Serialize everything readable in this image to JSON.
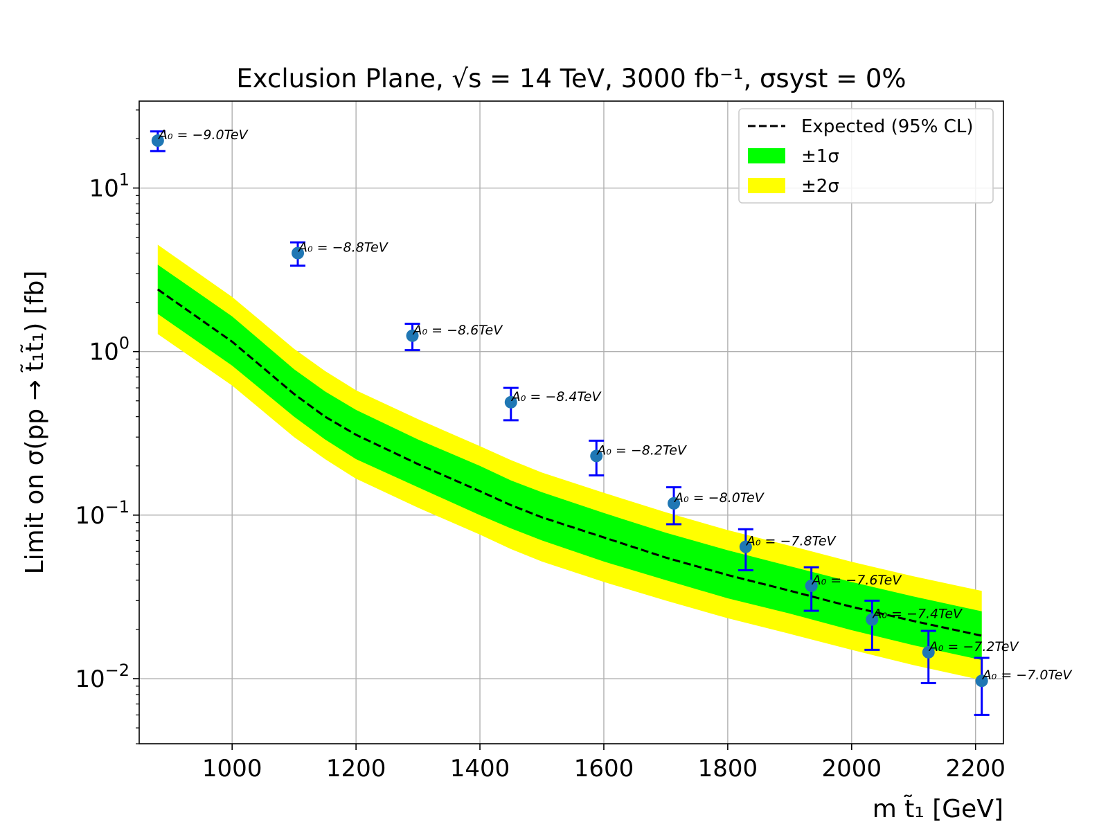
{
  "chart_data": {
    "type": "line",
    "title": "Exclusion Plane, √s = 14 TeV, 3000 fb⁻¹, σsyst = 0%",
    "xlabel": "m t̃₁ [GeV]",
    "ylabel": "Limit on σ(pp → t̃₁t̃₁) [fb]",
    "xscale": "linear",
    "yscale": "log",
    "xlim": [
      850,
      2245
    ],
    "ylim": [
      0.004,
      34
    ],
    "grid": true,
    "legend_position": "top-right",
    "x_ticks": [
      1000,
      1200,
      1400,
      1600,
      1800,
      2000,
      2200
    ],
    "x_tick_labels": [
      "1000",
      "1200",
      "1400",
      "1600",
      "1800",
      "2000",
      "2200"
    ],
    "y_ticks": [
      10,
      1,
      0.1,
      0.01
    ],
    "y_tick_labels": [
      {
        "base": "10",
        "exp": "1"
      },
      {
        "base": "10",
        "exp": "0"
      },
      {
        "base": "10",
        "exp": "−1"
      },
      {
        "base": "10",
        "exp": "−2"
      }
    ],
    "legend": [
      {
        "label": "Expected (95% CL)",
        "kind": "dashed-line",
        "color": "#000000"
      },
      {
        "label": "±1σ",
        "kind": "patch",
        "color": "#00ff00"
      },
      {
        "label": "±2σ",
        "kind": "patch",
        "color": "#ffff00"
      }
    ],
    "expected_band": {
      "x": [
        880,
        1000,
        1100,
        1150,
        1200,
        1300,
        1400,
        1450,
        1500,
        1600,
        1700,
        1800,
        1900,
        2000,
        2100,
        2210
      ],
      "expected": [
        2.4,
        1.15,
        0.55,
        0.4,
        0.31,
        0.205,
        0.14,
        0.115,
        0.097,
        0.073,
        0.055,
        0.043,
        0.0345,
        0.0275,
        0.0225,
        0.0183
      ],
      "minus1": [
        1.7,
        0.82,
        0.4,
        0.29,
        0.22,
        0.148,
        0.1,
        0.083,
        0.07,
        0.052,
        0.04,
        0.031,
        0.025,
        0.0198,
        0.016,
        0.013
      ],
      "plus1": [
        3.4,
        1.64,
        0.78,
        0.57,
        0.44,
        0.29,
        0.2,
        0.163,
        0.138,
        0.103,
        0.078,
        0.061,
        0.0487,
        0.039,
        0.0318,
        0.0258
      ],
      "minus2": [
        1.28,
        0.62,
        0.3,
        0.22,
        0.167,
        0.111,
        0.076,
        0.062,
        0.052,
        0.039,
        0.03,
        0.0234,
        0.0188,
        0.015,
        0.0121,
        0.0098
      ],
      "plus2": [
        4.5,
        2.16,
        1.04,
        0.76,
        0.58,
        0.386,
        0.264,
        0.217,
        0.182,
        0.137,
        0.104,
        0.081,
        0.065,
        0.0518,
        0.0422,
        0.0344
      ],
      "band_colors": {
        "one_sigma": "#00ff00",
        "two_sigma": "#ffff00"
      },
      "line_color": "#000000"
    },
    "points": [
      {
        "x": 880,
        "y": 19.5,
        "yerr_low": 16.8,
        "yerr_high": 22.2,
        "label": "A₀ = −9.0TeV"
      },
      {
        "x": 1106,
        "y": 4.0,
        "yerr_low": 3.35,
        "yerr_high": 4.65,
        "label": "A₀ = −8.8TeV"
      },
      {
        "x": 1291,
        "y": 1.25,
        "yerr_low": 1.02,
        "yerr_high": 1.48,
        "label": "A₀ = −8.6TeV"
      },
      {
        "x": 1450,
        "y": 0.49,
        "yerr_low": 0.38,
        "yerr_high": 0.6,
        "label": "A₀ = −8.4TeV"
      },
      {
        "x": 1588,
        "y": 0.23,
        "yerr_low": 0.175,
        "yerr_high": 0.285,
        "label": "A₀ = −8.2TeV"
      },
      {
        "x": 1713,
        "y": 0.118,
        "yerr_low": 0.088,
        "yerr_high": 0.148,
        "label": "A₀ = −8.0TeV"
      },
      {
        "x": 1829,
        "y": 0.064,
        "yerr_low": 0.046,
        "yerr_high": 0.082,
        "label": "A₀ = −7.8TeV"
      },
      {
        "x": 1935,
        "y": 0.037,
        "yerr_low": 0.026,
        "yerr_high": 0.048,
        "label": "A₀ = −7.6TeV"
      },
      {
        "x": 2033,
        "y": 0.023,
        "yerr_low": 0.015,
        "yerr_high": 0.03,
        "label": "A₀ = −7.4TeV"
      },
      {
        "x": 2124,
        "y": 0.0145,
        "yerr_low": 0.0094,
        "yerr_high": 0.0196,
        "label": "A₀ = −7.2TeV"
      },
      {
        "x": 2210,
        "y": 0.0097,
        "yerr_low": 0.006,
        "yerr_high": 0.0134,
        "label": "A₀ = −7.0TeV"
      }
    ],
    "point_color": "#1f77b4",
    "errorbar_color": "#0000ff"
  }
}
